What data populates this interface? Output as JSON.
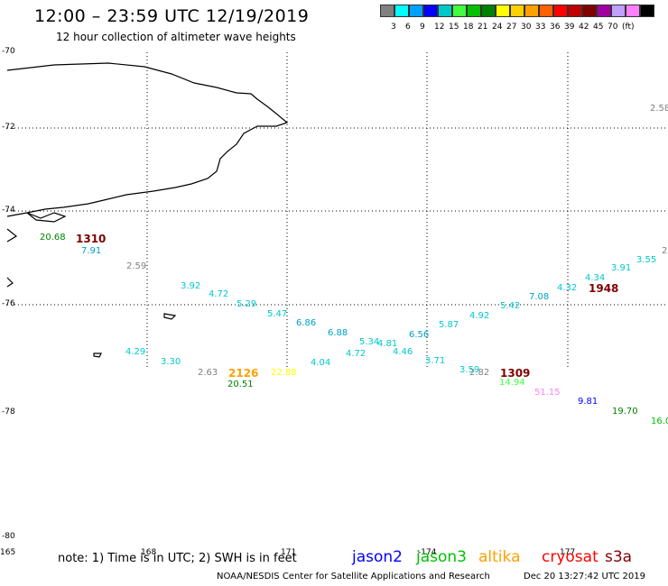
{
  "header": {
    "title": "12:00 – 23:59 UTC 12/19/2019",
    "subtitle": "12 hour collection of altimeter wave heights"
  },
  "legend": {
    "colors": [
      "#808080",
      "#00ffff",
      "#00a0ff",
      "#0000ff",
      "#00c8c8",
      "#40ff40",
      "#00c000",
      "#008000",
      "#ffff00",
      "#ffd000",
      "#ffa000",
      "#ff6000",
      "#ff0000",
      "#c00000",
      "#800000",
      "#a000a0",
      "#c0a0ff",
      "#ff80ff",
      "#000000"
    ],
    "labels": [
      "3",
      "6",
      "9",
      "12",
      "15",
      "18",
      "21",
      "24",
      "27",
      "30",
      "33",
      "36",
      "39",
      "42",
      "45",
      "70",
      "(ft)"
    ]
  },
  "axes": {
    "lat_labels": [
      "-70",
      "-72",
      "-74",
      "-76",
      "-78",
      "-80"
    ],
    "lon_labels": [
      "165",
      "168",
      "171",
      "-174",
      "177"
    ]
  },
  "values": [
    {
      "text": "2.58",
      "color": "#808080"
    },
    {
      "text": "20.68",
      "color": "#008000"
    },
    {
      "text": "1310",
      "color": "#800000"
    },
    {
      "text": "7.91",
      "color": "#00a0c8"
    },
    {
      "text": "2.59",
      "color": "#808080"
    },
    {
      "text": "2",
      "color": "#808080"
    },
    {
      "text": "3.92",
      "color": "#00c8d0"
    },
    {
      "text": "4.72",
      "color": "#00c8d0"
    },
    {
      "text": "5.29",
      "color": "#00c8d0"
    },
    {
      "text": "5.47",
      "color": "#00c8d0"
    },
    {
      "text": "6.86",
      "color": "#00a0c8"
    },
    {
      "text": "6.88",
      "color": "#00a0c8"
    },
    {
      "text": "5.34",
      "color": "#00c8d0"
    },
    {
      "text": "4.81",
      "color": "#00c8d0"
    },
    {
      "text": "4.72",
      "color": "#00c8d0"
    },
    {
      "text": "4.46",
      "color": "#00c8d0"
    },
    {
      "text": "6.56",
      "color": "#00a0c8"
    },
    {
      "text": "5.87",
      "color": "#00c8d0"
    },
    {
      "text": "4.92",
      "color": "#00c8d0"
    },
    {
      "text": "5.42",
      "color": "#00c8d0"
    },
    {
      "text": "7.08",
      "color": "#00a0c8"
    },
    {
      "text": "4.32",
      "color": "#00c8d0"
    },
    {
      "text": "4.34",
      "color": "#00c8d0"
    },
    {
      "text": "3.91",
      "color": "#00c8d0"
    },
    {
      "text": "3.55",
      "color": "#00c8d0"
    },
    {
      "text": "1948",
      "color": "#800000"
    },
    {
      "text": "4.29",
      "color": "#00c8d0"
    },
    {
      "text": "3.30",
      "color": "#00c8d0"
    },
    {
      "text": "2.63",
      "color": "#808080"
    },
    {
      "text": "2126",
      "color": "#ffa000"
    },
    {
      "text": "22.88",
      "color": "#ffff00"
    },
    {
      "text": "4.04",
      "color": "#00c8d0"
    },
    {
      "text": "20.51",
      "color": "#008000"
    },
    {
      "text": "3.71",
      "color": "#00c8d0"
    },
    {
      "text": "3.59",
      "color": "#00c8d0"
    },
    {
      "text": "2.82",
      "color": "#808080"
    },
    {
      "text": "1309",
      "color": "#800000"
    },
    {
      "text": "14.94",
      "color": "#40ff40"
    },
    {
      "text": "51.15",
      "color": "#ff80ff"
    },
    {
      "text": "9.81",
      "color": "#0000ff"
    },
    {
      "text": "19.70",
      "color": "#008000"
    },
    {
      "text": "16.0",
      "color": "#00c000"
    }
  ],
  "footer": {
    "note": "note: 1) Time is in UTC; 2) SWH is in feet",
    "satellites": [
      {
        "name": "jason2",
        "color": "#0000ff"
      },
      {
        "name": "jason3",
        "color": "#00c000"
      },
      {
        "name": "altika",
        "color": "#ffa000"
      },
      {
        "name": "cryosat",
        "color": "#ff0000"
      },
      {
        "name": "s3a",
        "color": "#800000"
      }
    ],
    "credit": "NOAA/NESDIS Center for Satellite Applications and Research",
    "timestamp": "Dec 20 13:27:42 UTC 2019"
  }
}
